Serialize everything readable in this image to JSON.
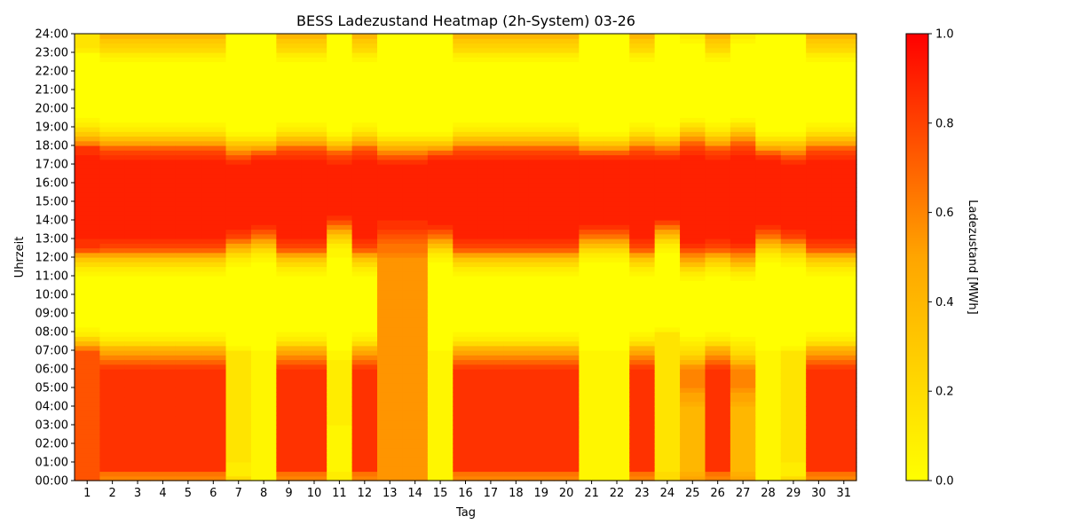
{
  "chart_data": {
    "type": "heatmap",
    "title": "BESS Ladezustand Heatmap (2h-System) 03-26",
    "xlabel": "Tag",
    "ylabel": "Uhrzeit",
    "colorbar_label": "Ladezustand [MWh]",
    "colorbar_ticks": [
      "0.0",
      "0.2",
      "0.4",
      "0.6",
      "0.8",
      "1.0"
    ],
    "vmin": 0.0,
    "vmax": 1.0,
    "colormap": [
      "#ffff00",
      "#ffa500",
      "#ff0000"
    ],
    "x_categories": [
      "1",
      "2",
      "3",
      "4",
      "5",
      "6",
      "7",
      "8",
      "9",
      "10",
      "11",
      "12",
      "13",
      "14",
      "15",
      "16",
      "17",
      "18",
      "19",
      "20",
      "21",
      "22",
      "23",
      "24",
      "25",
      "26",
      "27",
      "28",
      "29",
      "30",
      "31"
    ],
    "y_ticks": [
      "00:00",
      "01:00",
      "02:00",
      "03:00",
      "04:00",
      "05:00",
      "06:00",
      "07:00",
      "08:00",
      "09:00",
      "10:00",
      "11:00",
      "12:00",
      "13:00",
      "14:00",
      "15:00",
      "16:00",
      "17:00",
      "18:00",
      "19:00",
      "20:00",
      "21:00",
      "22:00",
      "23:00",
      "24:00"
    ],
    "y_resolution_hours": 0.25,
    "row_profiles": {
      "A": [
        0.75,
        0.75,
        0.75,
        0.75,
        0.75,
        0.75,
        0.75,
        0.75,
        0.75,
        0.75,
        0.75,
        0.75,
        0.75,
        0.75,
        0.75,
        0.75,
        0.75,
        0.75,
        0.75,
        0.75,
        0.75,
        0.75,
        0.75,
        0.75,
        0.75,
        0.75,
        0.75,
        0.75,
        0.6,
        0.4,
        0.25,
        0.1,
        0.05,
        0.0,
        0.0,
        0.0,
        0.0,
        0.0,
        0.0,
        0.0,
        0.0,
        0.0,
        0.0,
        0.0,
        0.05,
        0.1,
        0.2,
        0.3,
        0.5,
        0.75,
        0.85,
        0.85,
        0.9,
        0.9,
        0.9,
        0.9,
        0.9,
        0.9,
        0.9,
        0.9,
        0.9,
        0.9,
        0.9,
        0.9,
        0.9,
        0.9,
        0.9,
        0.9,
        0.9,
        0.9,
        0.85,
        0.85,
        0.6,
        0.45,
        0.3,
        0.2,
        0.1,
        0.05,
        0.0,
        0.0,
        0.0,
        0.0,
        0.0,
        0.0,
        0.0,
        0.0,
        0.0,
        0.0,
        0.0,
        0.0,
        0.0,
        0.0,
        0.1,
        0.15,
        0.15,
        0.15
      ],
      "B": [
        0.6,
        0.65,
        0.85,
        0.85,
        0.85,
        0.85,
        0.85,
        0.85,
        0.85,
        0.85,
        0.85,
        0.85,
        0.85,
        0.85,
        0.85,
        0.85,
        0.85,
        0.85,
        0.85,
        0.85,
        0.85,
        0.85,
        0.85,
        0.85,
        0.8,
        0.7,
        0.6,
        0.5,
        0.4,
        0.2,
        0.1,
        0.05,
        0.0,
        0.0,
        0.0,
        0.0,
        0.0,
        0.0,
        0.0,
        0.0,
        0.0,
        0.0,
        0.0,
        0.0,
        0.05,
        0.1,
        0.2,
        0.3,
        0.5,
        0.7,
        0.8,
        0.85,
        0.9,
        0.9,
        0.9,
        0.9,
        0.9,
        0.9,
        0.9,
        0.9,
        0.9,
        0.9,
        0.9,
        0.9,
        0.9,
        0.9,
        0.9,
        0.9,
        0.9,
        0.85,
        0.8,
        0.7,
        0.5,
        0.35,
        0.2,
        0.1,
        0.05,
        0.0,
        0.0,
        0.0,
        0.0,
        0.0,
        0.0,
        0.0,
        0.0,
        0.0,
        0.0,
        0.0,
        0.0,
        0.0,
        0.05,
        0.1,
        0.2,
        0.25,
        0.3,
        0.4
      ],
      "C": [
        0.2,
        0.1,
        0.1,
        0.1,
        0.15,
        0.15,
        0.15,
        0.15,
        0.15,
        0.15,
        0.15,
        0.15,
        0.15,
        0.15,
        0.15,
        0.15,
        0.15,
        0.15,
        0.15,
        0.15,
        0.15,
        0.15,
        0.15,
        0.15,
        0.15,
        0.15,
        0.15,
        0.15,
        0.05,
        0.0,
        0.0,
        0.0,
        0.0,
        0.0,
        0.0,
        0.0,
        0.0,
        0.0,
        0.0,
        0.0,
        0.0,
        0.0,
        0.0,
        0.0,
        0.0,
        0.0,
        0.05,
        0.1,
        0.2,
        0.35,
        0.5,
        0.65,
        0.8,
        0.85,
        0.9,
        0.9,
        0.9,
        0.9,
        0.9,
        0.9,
        0.9,
        0.9,
        0.9,
        0.9,
        0.9,
        0.9,
        0.9,
        0.9,
        0.85,
        0.75,
        0.6,
        0.45,
        0.3,
        0.15,
        0.05,
        0.0,
        0.0,
        0.0,
        0.0,
        0.0,
        0.0,
        0.0,
        0.0,
        0.0,
        0.0,
        0.0,
        0.0,
        0.0,
        0.0,
        0.0,
        0.0,
        0.0,
        0.0,
        0.0,
        0.0,
        0.0
      ],
      "D": [
        0.05,
        0.05,
        0.05,
        0.05,
        0.05,
        0.05,
        0.05,
        0.05,
        0.05,
        0.05,
        0.05,
        0.05,
        0.05,
        0.05,
        0.05,
        0.05,
        0.05,
        0.05,
        0.05,
        0.05,
        0.05,
        0.05,
        0.05,
        0.05,
        0.05,
        0.05,
        0.05,
        0.05,
        0.0,
        0.0,
        0.0,
        0.0,
        0.0,
        0.0,
        0.0,
        0.0,
        0.0,
        0.0,
        0.0,
        0.0,
        0.0,
        0.0,
        0.0,
        0.0,
        0.0,
        0.0,
        0.0,
        0.05,
        0.1,
        0.2,
        0.35,
        0.5,
        0.65,
        0.75,
        0.85,
        0.9,
        0.9,
        0.9,
        0.9,
        0.9,
        0.9,
        0.9,
        0.9,
        0.9,
        0.9,
        0.9,
        0.9,
        0.9,
        0.9,
        0.85,
        0.7,
        0.5,
        0.3,
        0.15,
        0.05,
        0.0,
        0.0,
        0.0,
        0.0,
        0.0,
        0.0,
        0.0,
        0.0,
        0.0,
        0.0,
        0.0,
        0.0,
        0.0,
        0.0,
        0.0,
        0.0,
        0.0,
        0.0,
        0.0,
        0.0,
        0.0
      ],
      "E": [
        0.1,
        0.1,
        0.05,
        0.05,
        0.05,
        0.05,
        0.05,
        0.05,
        0.05,
        0.05,
        0.05,
        0.05,
        0.1,
        0.1,
        0.1,
        0.1,
        0.1,
        0.1,
        0.1,
        0.1,
        0.1,
        0.1,
        0.1,
        0.1,
        0.1,
        0.1,
        0.05,
        0.05,
        0.0,
        0.0,
        0.0,
        0.0,
        0.0,
        0.0,
        0.0,
        0.0,
        0.0,
        0.0,
        0.0,
        0.0,
        0.0,
        0.0,
        0.0,
        0.0,
        0.0,
        0.0,
        0.0,
        0.0,
        0.05,
        0.05,
        0.1,
        0.2,
        0.3,
        0.45,
        0.6,
        0.75,
        0.85,
        0.9,
        0.9,
        0.9,
        0.9,
        0.9,
        0.9,
        0.9,
        0.9,
        0.9,
        0.9,
        0.9,
        0.85,
        0.8,
        0.7,
        0.5,
        0.3,
        0.15,
        0.05,
        0.0,
        0.0,
        0.0,
        0.0,
        0.0,
        0.0,
        0.0,
        0.0,
        0.0,
        0.0,
        0.0,
        0.0,
        0.0,
        0.0,
        0.0,
        0.0,
        0.0,
        0.0,
        0.0,
        0.0,
        0.0
      ],
      "F": [
        0.55,
        0.55,
        0.55,
        0.55,
        0.55,
        0.55,
        0.55,
        0.55,
        0.55,
        0.55,
        0.55,
        0.55,
        0.55,
        0.55,
        0.55,
        0.55,
        0.55,
        0.55,
        0.55,
        0.55,
        0.55,
        0.55,
        0.55,
        0.55,
        0.55,
        0.55,
        0.55,
        0.55,
        0.55,
        0.55,
        0.55,
        0.55,
        0.55,
        0.55,
        0.55,
        0.55,
        0.55,
        0.55,
        0.55,
        0.55,
        0.55,
        0.55,
        0.55,
        0.55,
        0.55,
        0.55,
        0.55,
        0.55,
        0.6,
        0.65,
        0.65,
        0.7,
        0.75,
        0.8,
        0.85,
        0.85,
        0.9,
        0.9,
        0.9,
        0.9,
        0.9,
        0.9,
        0.9,
        0.9,
        0.9,
        0.9,
        0.9,
        0.9,
        0.85,
        0.75,
        0.6,
        0.45,
        0.3,
        0.15,
        0.05,
        0.0,
        0.0,
        0.0,
        0.0,
        0.0,
        0.0,
        0.0,
        0.0,
        0.0,
        0.0,
        0.0,
        0.0,
        0.0,
        0.0,
        0.0,
        0.0,
        0.0,
        0.0,
        0.0,
        0.0,
        0.0
      ],
      "G": [
        0.2,
        0.2,
        0.15,
        0.15,
        0.15,
        0.15,
        0.15,
        0.15,
        0.15,
        0.15,
        0.15,
        0.15,
        0.15,
        0.15,
        0.15,
        0.15,
        0.15,
        0.15,
        0.15,
        0.15,
        0.15,
        0.15,
        0.15,
        0.15,
        0.15,
        0.15,
        0.15,
        0.15,
        0.15,
        0.15,
        0.15,
        0.15,
        0.05,
        0.0,
        0.0,
        0.0,
        0.0,
        0.0,
        0.0,
        0.0,
        0.0,
        0.0,
        0.0,
        0.0,
        0.0,
        0.0,
        0.0,
        0.0,
        0.0,
        0.05,
        0.1,
        0.2,
        0.35,
        0.5,
        0.65,
        0.8,
        0.9,
        0.9,
        0.9,
        0.9,
        0.9,
        0.9,
        0.9,
        0.9,
        0.9,
        0.9,
        0.9,
        0.9,
        0.9,
        0.85,
        0.75,
        0.6,
        0.4,
        0.25,
        0.1,
        0.05,
        0.0,
        0.0,
        0.0,
        0.0,
        0.0,
        0.0,
        0.0,
        0.0,
        0.0,
        0.0,
        0.0,
        0.0,
        0.0,
        0.0,
        0.0,
        0.0,
        0.0,
        0.0,
        0.0,
        0.0
      ],
      "H": [
        0.5,
        0.45,
        0.4,
        0.4,
        0.4,
        0.4,
        0.4,
        0.4,
        0.4,
        0.4,
        0.4,
        0.4,
        0.4,
        0.4,
        0.4,
        0.4,
        0.45,
        0.5,
        0.5,
        0.55,
        0.6,
        0.6,
        0.6,
        0.6,
        0.55,
        0.4,
        0.3,
        0.2,
        0.15,
        0.1,
        0.05,
        0.0,
        0.0,
        0.0,
        0.0,
        0.0,
        0.0,
        0.0,
        0.0,
        0.0,
        0.0,
        0.0,
        0.0,
        0.05,
        0.1,
        0.2,
        0.35,
        0.5,
        0.6,
        0.75,
        0.85,
        0.9,
        0.9,
        0.9,
        0.9,
        0.9,
        0.9,
        0.9,
        0.9,
        0.9,
        0.9,
        0.9,
        0.9,
        0.9,
        0.9,
        0.9,
        0.9,
        0.9,
        0.9,
        0.9,
        0.85,
        0.8,
        0.7,
        0.55,
        0.4,
        0.25,
        0.15,
        0.05,
        0.0,
        0.0,
        0.0,
        0.0,
        0.0,
        0.0,
        0.0,
        0.0,
        0.0,
        0.0,
        0.0,
        0.0,
        0.0,
        0.0,
        0.0,
        0.0,
        0.05,
        0.1
      ]
    },
    "day_profiles": [
      "A",
      "B",
      "B",
      "B",
      "B",
      "B",
      "C",
      "D",
      "B",
      "B",
      "E",
      "B",
      "F",
      "F",
      "D",
      "B",
      "B",
      "B",
      "B",
      "B",
      "D",
      "D",
      "B",
      "G",
      "H",
      "B",
      "H",
      "D",
      "C",
      "B",
      "B"
    ]
  }
}
